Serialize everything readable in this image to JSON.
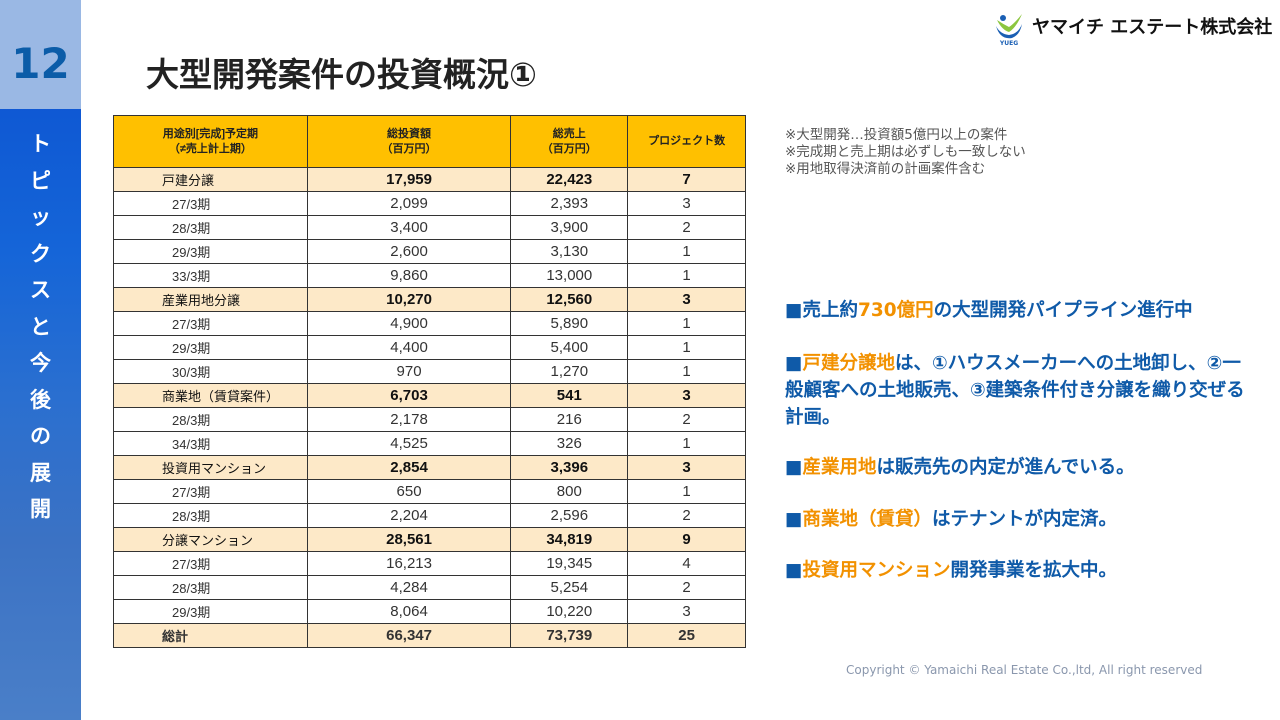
{
  "sidebar": {
    "page_number": "12",
    "section_chars": [
      "ト",
      "ピ",
      "ッ",
      "ク",
      "ス",
      "と",
      "今",
      "後",
      "の",
      "展",
      "開"
    ]
  },
  "title": "大型開発案件の投資概況①",
  "logo": {
    "company": "ヤマイチ エステート株式会社",
    "mark_text": "YUEG"
  },
  "table": {
    "headers": [
      [
        "用途別[完成]予定期",
        "（≠売上計上期）"
      ],
      [
        "総投資額",
        "（百万円）"
      ],
      [
        "総売上",
        "（百万円）"
      ],
      [
        "プロジェクト数"
      ]
    ],
    "rows": [
      {
        "type": "cat",
        "cells": [
          "戸建分譲",
          "17,959",
          "22,423",
          "7"
        ]
      },
      {
        "type": "sub",
        "cells": [
          "27/3期",
          "2,099",
          "2,393",
          "3"
        ]
      },
      {
        "type": "sub",
        "cells": [
          "28/3期",
          "3,400",
          "3,900",
          "2"
        ]
      },
      {
        "type": "sub",
        "cells": [
          "29/3期",
          "2,600",
          "3,130",
          "1"
        ]
      },
      {
        "type": "sub",
        "cells": [
          "33/3期",
          "9,860",
          "13,000",
          "1"
        ]
      },
      {
        "type": "cat",
        "cells": [
          "産業用地分譲",
          "10,270",
          "12,560",
          "3"
        ]
      },
      {
        "type": "sub",
        "cells": [
          "27/3期",
          "4,900",
          "5,890",
          "1"
        ]
      },
      {
        "type": "sub",
        "cells": [
          "29/3期",
          "4,400",
          "5,400",
          "1"
        ]
      },
      {
        "type": "sub",
        "cells": [
          "30/3期",
          "970",
          "1,270",
          "1"
        ]
      },
      {
        "type": "cat",
        "cells": [
          "商業地（賃貸案件）",
          "6,703",
          "541",
          "3"
        ]
      },
      {
        "type": "sub",
        "cells": [
          "28/3期",
          "2,178",
          "216",
          "2"
        ]
      },
      {
        "type": "sub",
        "cells": [
          "34/3期",
          "4,525",
          "326",
          "1"
        ]
      },
      {
        "type": "cat",
        "cells": [
          "投資用マンション",
          "2,854",
          "3,396",
          "3"
        ]
      },
      {
        "type": "sub",
        "cells": [
          "27/3期",
          "650",
          "800",
          "1"
        ]
      },
      {
        "type": "sub",
        "cells": [
          "28/3期",
          "2,204",
          "2,596",
          "2"
        ]
      },
      {
        "type": "cat",
        "cells": [
          "分譲マンション",
          "28,561",
          "34,819",
          "9"
        ]
      },
      {
        "type": "sub",
        "cells": [
          "27/3期",
          "16,213",
          "19,345",
          "4"
        ]
      },
      {
        "type": "sub",
        "cells": [
          "28/3期",
          "4,284",
          "5,254",
          "2"
        ]
      },
      {
        "type": "sub",
        "cells": [
          "29/3期",
          "8,064",
          "10,220",
          "3"
        ]
      },
      {
        "type": "tot",
        "cells": [
          "総計",
          "66,347",
          "73,739",
          "25"
        ]
      }
    ]
  },
  "notes": [
    "※大型開発…投資額5億円以上の案件",
    "※完成期と売上期は必ずしも一致しない",
    "※用地取得決済前の計画案件含む"
  ],
  "bullets": [
    [
      {
        "t": "■売上約",
        "o": false
      },
      {
        "t": "730億円",
        "o": true
      },
      {
        "t": "の大型開発パイプライン進行中",
        "o": false
      }
    ],
    [
      {
        "t": "■",
        "o": false
      },
      {
        "t": "戸建分譲地",
        "o": true
      },
      {
        "t": "は、①ハウスメーカーへの土地卸し、②一般顧客への土地販売、③建築条件付き分譲を織り交ぜる計画。",
        "o": false
      }
    ],
    [
      {
        "t": "■",
        "o": false
      },
      {
        "t": "産業用地",
        "o": true
      },
      {
        "t": "は販売先の内定が進んでいる。",
        "o": false
      }
    ],
    [
      {
        "t": "■",
        "o": false
      },
      {
        "t": "商業地（賃貸）",
        "o": true
      },
      {
        "t": "はテナントが内定済。",
        "o": false
      }
    ],
    [
      {
        "t": "■",
        "o": false
      },
      {
        "t": "投資用マンション",
        "o": true
      },
      {
        "t": "開発事業を拡大中。",
        "o": false
      }
    ]
  ],
  "copyright": "Copyright © Yamaichi Real Estate Co.,ltd, All right reserved",
  "colors": {
    "header": "#ffc000",
    "category_row": "#fde9c8",
    "accent_blue": "#0f5aa8",
    "accent_orange": "#f29100"
  }
}
